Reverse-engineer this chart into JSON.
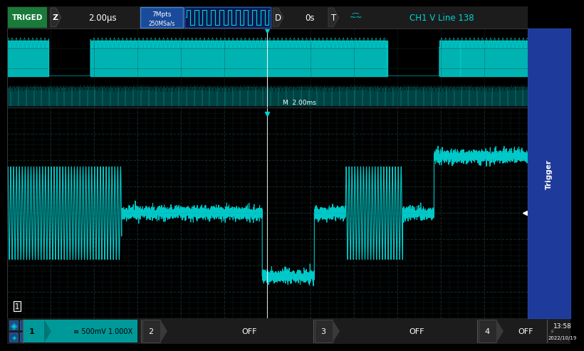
{
  "bg_color": "#000000",
  "top_bar_bg": "#1c1c1c",
  "bottom_bar_bg": "#1c1c1c",
  "scope_bg": "#000000",
  "cyan": "#00d4d4",
  "cyan_fill": "#00c8c8",
  "green_triged": "#1a7a3a",
  "blue_highlight": "#1a4a9a",
  "gray_dark": "#222222",
  "grid_color": "#1a3838",
  "dot_color": "#1e4a4a",
  "white": "#ffffff",
  "yellow": "#e8e000",
  "trigger_tab_bg": "#1a3a8a",
  "title": "TRIGED",
  "time_div": "2.00μs",
  "mpts": "7Mpts",
  "sa": "250MSa/s",
  "delay": "0s",
  "ch1_label": "CH1 V Line 138",
  "m_label": "M  2.00ms",
  "ch1_volt": "≡ 500mV 1.000X",
  "time_stamp": "13:58",
  "date_stamp": "2022/10/19"
}
